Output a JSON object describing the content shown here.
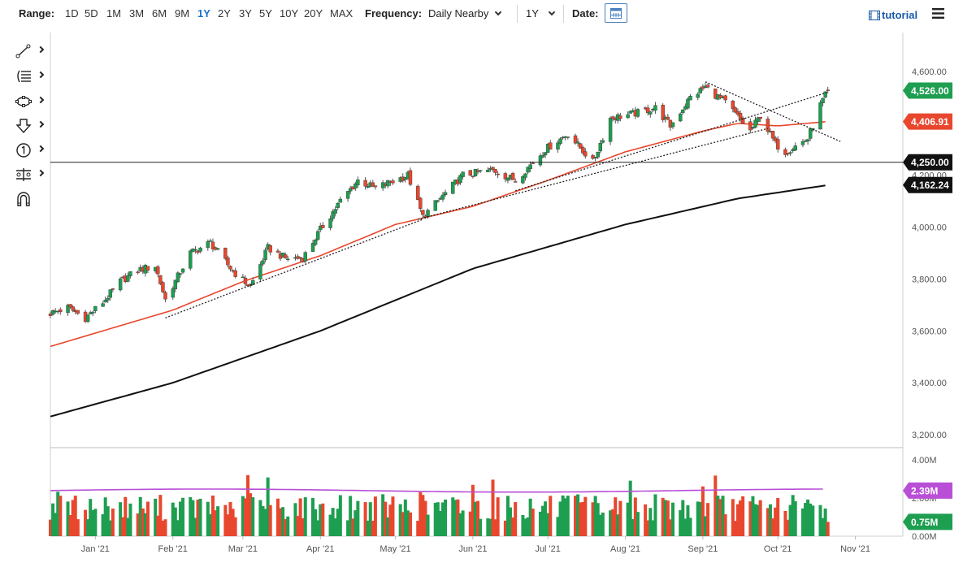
{
  "toolbar": {
    "range_label": "Range:",
    "ranges": [
      "1D",
      "5D",
      "1M",
      "3M",
      "6M",
      "9M",
      "1Y",
      "2Y",
      "3Y",
      "5Y",
      "10Y",
      "20Y",
      "MAX"
    ],
    "active_range": "1Y",
    "frequency_label": "Frequency:",
    "frequency_value": "Daily Nearby",
    "period_value": "1Y",
    "date_label": "Date:",
    "tutorial_label": "tutorial"
  },
  "drawing_tools": [
    "trend-line-icon",
    "fibonacci-icon",
    "shape-icon",
    "arrow-down-icon",
    "number-marker-icon",
    "measure-tool-icon",
    "magnet-icon"
  ],
  "colors": {
    "up": "#1e9e50",
    "down": "#e8472e",
    "sma_fast": "#e8472e",
    "sma_slow": "#111111",
    "volume_avg": "#b84fd6",
    "last_price_tag": "#1e9e50",
    "fast_sma_tag": "#e8472e",
    "level_tag": "#111111"
  },
  "chart_data": {
    "type": "candlestick",
    "x_ticks": [
      "Jan '21",
      "Feb '21",
      "Mar '21",
      "Apr '21",
      "May '21",
      "Jun '21",
      "Jul '21",
      "Aug '21",
      "Sep '21",
      "Oct '21",
      "Nov '21"
    ],
    "x_range": [
      "2020-12-14",
      "2021-11-20"
    ],
    "price_axis": {
      "ticks": [
        "4,600.00",
        "4,400.00",
        "4,200.00",
        "4,000.00",
        "3,800.00",
        "3,600.00",
        "3,400.00",
        "3,200.00"
      ],
      "tick_values": [
        4600,
        4400,
        4200,
        4000,
        3800,
        3600,
        3400,
        3200
      ],
      "ylim": [
        3150,
        4750
      ]
    },
    "volume_axis": {
      "ticks": [
        "4.00M",
        "2.00M",
        "0.00M"
      ],
      "tick_values": [
        4,
        2,
        0
      ],
      "ylim": [
        0,
        4.3
      ]
    },
    "tags": {
      "last_price": "4,526.00",
      "sma_fast": "4,406.91",
      "horizontal_level": "4,250.00",
      "sma_slow": "4,162.24",
      "volume_avg": "2.39M",
      "last_volume": "0.75M"
    },
    "last_price": 4526,
    "sma_fast_last": 4406.91,
    "horizontal_level": 4250,
    "sma_slow_last": 4162.24,
    "volume_avg_last": 2.39,
    "last_volume": 0.75,
    "close_anchors": [
      [
        "2020-12-14",
        3668
      ],
      [
        "2020-12-21",
        3690
      ],
      [
        "2020-12-28",
        3650
      ],
      [
        "2021-01-04",
        3710
      ],
      [
        "2021-01-11",
        3790
      ],
      [
        "2021-01-18",
        3835
      ],
      [
        "2021-01-25",
        3850
      ],
      [
        "2021-01-29",
        3720
      ],
      [
        "2021-02-08",
        3900
      ],
      [
        "2021-02-16",
        3940
      ],
      [
        "2021-02-25",
        3830
      ],
      [
        "2021-03-04",
        3770
      ],
      [
        "2021-03-11",
        3920
      ],
      [
        "2021-03-18",
        3880
      ],
      [
        "2021-03-25",
        3880
      ],
      [
        "2021-04-01",
        3990
      ],
      [
        "2021-04-09",
        4100
      ],
      [
        "2021-04-16",
        4180
      ],
      [
        "2021-04-23",
        4150
      ],
      [
        "2021-05-06",
        4200
      ],
      [
        "2021-05-12",
        4040
      ],
      [
        "2021-05-19",
        4110
      ],
      [
        "2021-05-28",
        4200
      ],
      [
        "2021-06-09",
        4220
      ],
      [
        "2021-06-18",
        4180
      ],
      [
        "2021-06-30",
        4300
      ],
      [
        "2021-07-09",
        4360
      ],
      [
        "2021-07-19",
        4250
      ],
      [
        "2021-07-26",
        4420
      ],
      [
        "2021-08-06",
        4440
      ],
      [
        "2021-08-13",
        4460
      ],
      [
        "2021-08-19",
        4390
      ],
      [
        "2021-08-27",
        4500
      ],
      [
        "2021-09-02",
        4540
      ],
      [
        "2021-09-10",
        4480
      ],
      [
        "2021-09-20",
        4370
      ],
      [
        "2021-09-24",
        4430
      ],
      [
        "2021-09-30",
        4320
      ],
      [
        "2021-10-04",
        4290
      ],
      [
        "2021-10-13",
        4340
      ],
      [
        "2021-10-18",
        4470
      ],
      [
        "2021-10-21",
        4526
      ]
    ],
    "sma_fast_anchors": [
      [
        "2020-12-14",
        3540
      ],
      [
        "2021-01-04",
        3600
      ],
      [
        "2021-02-01",
        3680
      ],
      [
        "2021-03-01",
        3790
      ],
      [
        "2021-04-01",
        3890
      ],
      [
        "2021-05-01",
        4010
      ],
      [
        "2021-06-01",
        4080
      ],
      [
        "2021-07-01",
        4180
      ],
      [
        "2021-08-01",
        4290
      ],
      [
        "2021-09-01",
        4370
      ],
      [
        "2021-09-15",
        4400
      ],
      [
        "2021-10-01",
        4390
      ],
      [
        "2021-10-21",
        4407
      ]
    ],
    "sma_slow_anchors": [
      [
        "2020-12-14",
        3270
      ],
      [
        "2021-02-01",
        3400
      ],
      [
        "2021-04-01",
        3600
      ],
      [
        "2021-06-01",
        3840
      ],
      [
        "2021-08-01",
        4010
      ],
      [
        "2021-09-15",
        4110
      ],
      [
        "2021-10-21",
        4162
      ]
    ],
    "trendlines": [
      [
        [
          "2021-01-29",
          3650
        ],
        [
          "2021-05-12",
          4030
        ]
      ],
      [
        [
          "2021-05-10",
          4030
        ],
        [
          "2021-09-27",
          4380
        ]
      ],
      [
        [
          "2021-06-18",
          4140
        ],
        [
          "2021-10-21",
          4520
        ]
      ],
      [
        [
          "2021-09-02",
          4560
        ],
        [
          "2021-10-26",
          4330
        ]
      ]
    ]
  }
}
